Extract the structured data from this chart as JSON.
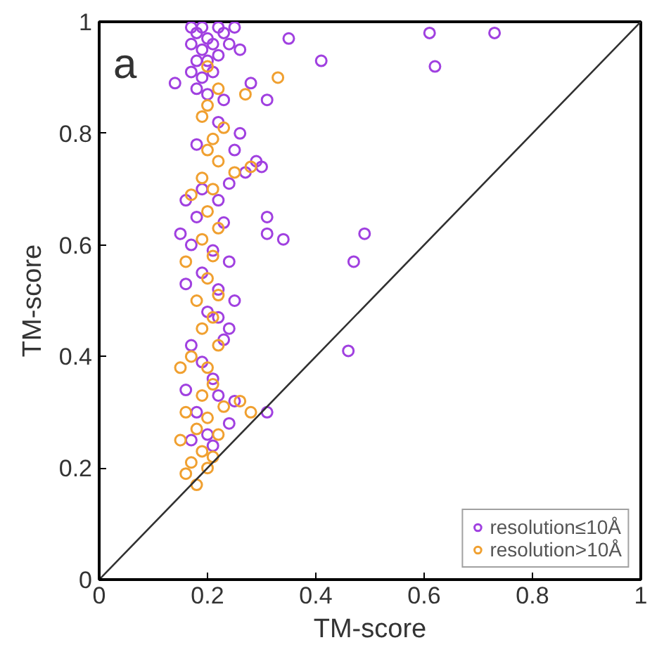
{
  "chart_data": {
    "type": "scatter",
    "xlabel": "TM-score",
    "ylabel": "TM-score",
    "annotations": [
      "a"
    ],
    "xlim": [
      0,
      1
    ],
    "ylim": [
      0,
      1
    ],
    "xticks": [
      0,
      0.2,
      0.4,
      0.6,
      0.8,
      1
    ],
    "yticks": [
      0,
      0.2,
      0.4,
      0.6,
      0.8,
      1
    ],
    "grid": false,
    "legend": "bottom right",
    "series": [
      {
        "name": "resolution≤10Å",
        "color": "#a040e0",
        "marker": "circle",
        "x": [
          0.17,
          0.18,
          0.19,
          0.2,
          0.22,
          0.23,
          0.25,
          0.17,
          0.19,
          0.21,
          0.24,
          0.18,
          0.2,
          0.22,
          0.26,
          0.17,
          0.19,
          0.21,
          0.14,
          0.18,
          0.2,
          0.23,
          0.22,
          0.26,
          0.18,
          0.25,
          0.29,
          0.27,
          0.3,
          0.24,
          0.19,
          0.22,
          0.16,
          0.18,
          0.23,
          0.15,
          0.17,
          0.21,
          0.24,
          0.19,
          0.16,
          0.22,
          0.25,
          0.2,
          0.24,
          0.23,
          0.17,
          0.19,
          0.21,
          0.16,
          0.22,
          0.18,
          0.24,
          0.2,
          0.17,
          0.61,
          0.73,
          0.62,
          0.41,
          0.35,
          0.28,
          0.31,
          0.31,
          0.31,
          0.34,
          0.49,
          0.47,
          0.46,
          0.31,
          0.25,
          0.21,
          0.22
        ],
        "values": [
          0.99,
          0.98,
          0.99,
          0.97,
          0.99,
          0.98,
          0.99,
          0.96,
          0.95,
          0.96,
          0.96,
          0.93,
          0.93,
          0.94,
          0.95,
          0.91,
          0.9,
          0.91,
          0.89,
          0.88,
          0.87,
          0.86,
          0.82,
          0.8,
          0.78,
          0.77,
          0.75,
          0.73,
          0.74,
          0.71,
          0.7,
          0.68,
          0.68,
          0.65,
          0.64,
          0.62,
          0.6,
          0.59,
          0.57,
          0.55,
          0.53,
          0.52,
          0.5,
          0.48,
          0.45,
          0.43,
          0.42,
          0.39,
          0.36,
          0.34,
          0.33,
          0.3,
          0.28,
          0.26,
          0.25,
          0.98,
          0.98,
          0.92,
          0.93,
          0.97,
          0.89,
          0.86,
          0.65,
          0.62,
          0.61,
          0.62,
          0.57,
          0.41,
          0.3,
          0.32,
          0.24,
          0.47
        ]
      },
      {
        "name": "resolution>10Å",
        "color": "#f0a030",
        "marker": "circle",
        "x": [
          0.2,
          0.22,
          0.2,
          0.19,
          0.23,
          0.21,
          0.2,
          0.22,
          0.25,
          0.19,
          0.21,
          0.17,
          0.2,
          0.22,
          0.19,
          0.21,
          0.16,
          0.2,
          0.22,
          0.18,
          0.21,
          0.19,
          0.22,
          0.17,
          0.2,
          0.15,
          0.21,
          0.19,
          0.23,
          0.26,
          0.28,
          0.16,
          0.2,
          0.18,
          0.22,
          0.15,
          0.19,
          0.17,
          0.2,
          0.16,
          0.18,
          0.21,
          0.28,
          0.33,
          0.27
        ],
        "values": [
          0.92,
          0.88,
          0.85,
          0.83,
          0.81,
          0.79,
          0.77,
          0.75,
          0.73,
          0.72,
          0.7,
          0.69,
          0.66,
          0.63,
          0.61,
          0.58,
          0.57,
          0.54,
          0.51,
          0.5,
          0.47,
          0.45,
          0.42,
          0.4,
          0.38,
          0.38,
          0.35,
          0.33,
          0.31,
          0.32,
          0.3,
          0.3,
          0.29,
          0.27,
          0.26,
          0.25,
          0.23,
          0.21,
          0.2,
          0.19,
          0.17,
          0.22,
          0.74,
          0.9,
          0.87
        ]
      },
      {
        "type": "line",
        "color": "#303030",
        "x": [
          0,
          1
        ],
        "values": [
          0,
          1
        ]
      }
    ]
  }
}
